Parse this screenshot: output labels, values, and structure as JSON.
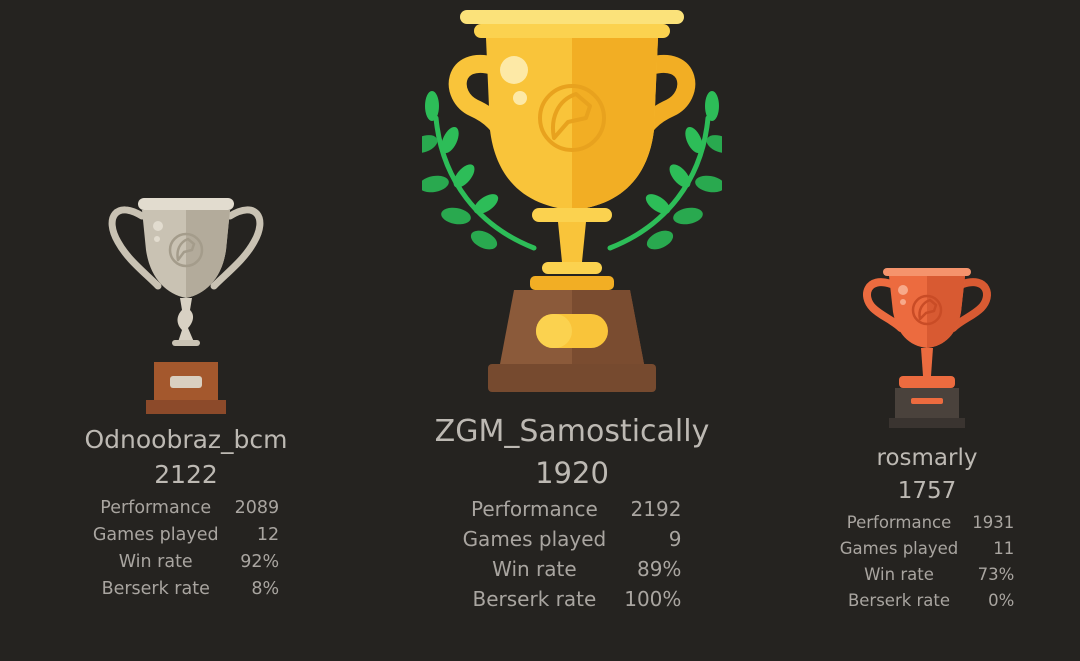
{
  "colors": {
    "background": "#252320",
    "gold": "#f9c43a",
    "silver": "#c9c2b3",
    "bronze": "#ec6b3f",
    "laurel": "#2dbd58"
  },
  "podium": {
    "second": {
      "place": 2,
      "trophy_icon": "silver-trophy-icon",
      "name": "Odnoobraz_bcm",
      "rating": "2122",
      "stats": [
        {
          "label": "Performance",
          "value": "2089"
        },
        {
          "label": "Games played",
          "value": "12"
        },
        {
          "label": "Win rate",
          "value": "92%"
        },
        {
          "label": "Berserk rate",
          "value": "8%"
        }
      ]
    },
    "first": {
      "place": 1,
      "trophy_icon": "gold-trophy-with-laurel-icon",
      "name": "ZGM_Samostically",
      "rating": "1920",
      "stats": [
        {
          "label": "Performance",
          "value": "2192"
        },
        {
          "label": "Games played",
          "value": "9"
        },
        {
          "label": "Win rate",
          "value": "89%"
        },
        {
          "label": "Berserk rate",
          "value": "100%"
        }
      ]
    },
    "third": {
      "place": 3,
      "trophy_icon": "bronze-trophy-icon",
      "name": "rosmarly",
      "rating": "1757",
      "stats": [
        {
          "label": "Performance",
          "value": "1931"
        },
        {
          "label": "Games played",
          "value": "11"
        },
        {
          "label": "Win rate",
          "value": "73%"
        },
        {
          "label": "Berserk rate",
          "value": "0%"
        }
      ]
    }
  }
}
